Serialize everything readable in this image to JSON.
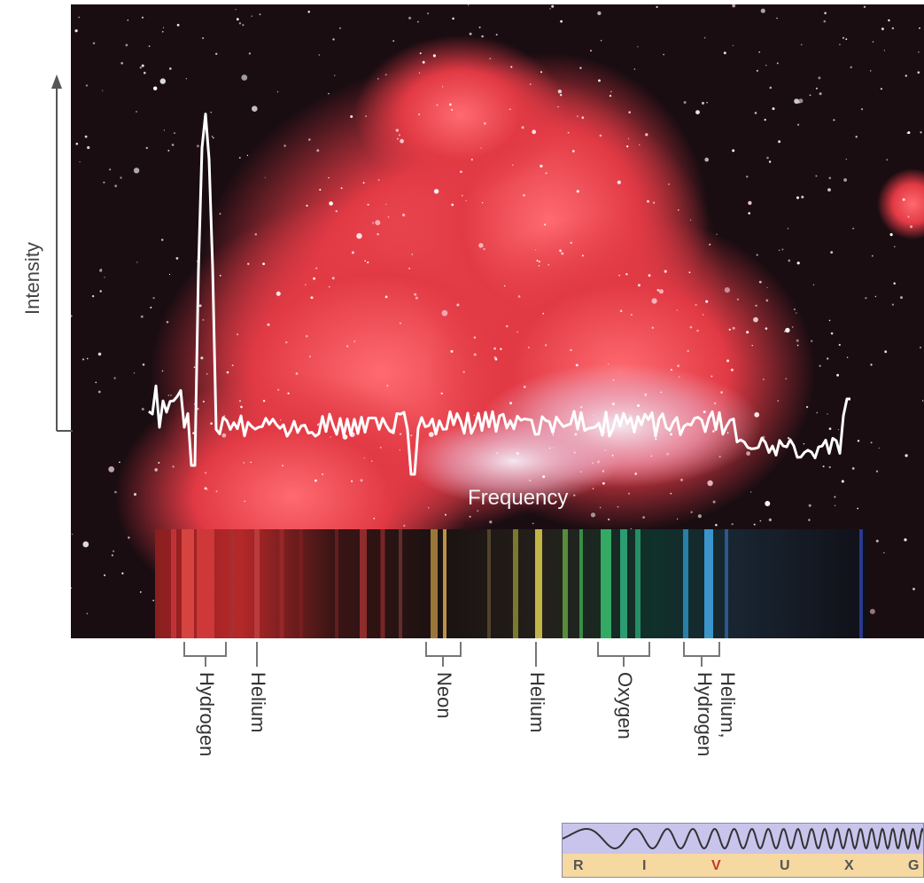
{
  "axes": {
    "y_label": "Intensity",
    "x_label": "Frequency"
  },
  "spectral_lines": [
    {
      "label": "Hydrogen"
    },
    {
      "label": "Helium"
    },
    {
      "label": "Neon"
    },
    {
      "label": "Helium"
    },
    {
      "label": "Oxygen"
    },
    {
      "label": "Helium, Hydrogen"
    }
  ],
  "wavelength_bands": [
    "R",
    "I",
    "V",
    "U",
    "X",
    "G"
  ],
  "highlighted_band": "V",
  "colors": {
    "nebula": "#e0303c",
    "sky": "#1a0d12",
    "trace": "#ffffff",
    "band_panel": "#f6d9a0",
    "wave_panel": "#c8c4ec"
  }
}
